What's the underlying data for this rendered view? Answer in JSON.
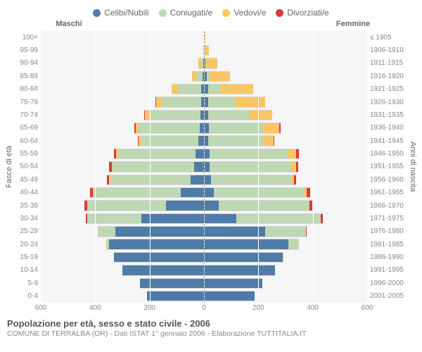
{
  "legend": {
    "items": [
      {
        "label": "Celibi/Nubili",
        "color": "#4f7ca7"
      },
      {
        "label": "Coniugati/e",
        "color": "#bed8b4"
      },
      {
        "label": "Vedovi/e",
        "color": "#fac663"
      },
      {
        "label": "Divorziati/e",
        "color": "#d93a3a"
      }
    ]
  },
  "headers": {
    "male": "Maschi",
    "female": "Femmine"
  },
  "yAxisLeft": {
    "label": "Fasce di età"
  },
  "yAxisRight": {
    "label": "Anni di nascita"
  },
  "xMax": 600,
  "xTicks": [
    600,
    400,
    200,
    0,
    200,
    400,
    600
  ],
  "colors": {
    "celibi": "#4f7ca7",
    "coniugati": "#bed8b4",
    "vedovi": "#fac663",
    "divorziati": "#d93a3a",
    "plotBg": "#f6f6f6",
    "grid": "#ffffff",
    "centerline": "#999999",
    "border": "#d6d7d6"
  },
  "rows": [
    {
      "age": "100+",
      "birth": "≤ 1905",
      "m": {
        "c": 0,
        "co": 0,
        "v": 0,
        "d": 0
      },
      "f": {
        "c": 0,
        "co": 0,
        "v": 5,
        "d": 0
      }
    },
    {
      "age": "95-99",
      "birth": "1906-1910",
      "m": {
        "c": 0,
        "co": 0,
        "v": 3,
        "d": 0
      },
      "f": {
        "c": 0,
        "co": 0,
        "v": 18,
        "d": 0
      }
    },
    {
      "age": "90-94",
      "birth": "1911-1915",
      "m": {
        "c": 3,
        "co": 7,
        "v": 10,
        "d": 0
      },
      "f": {
        "c": 5,
        "co": 3,
        "v": 40,
        "d": 0
      }
    },
    {
      "age": "85-89",
      "birth": "1916-1920",
      "m": {
        "c": 5,
        "co": 25,
        "v": 15,
        "d": 0
      },
      "f": {
        "c": 10,
        "co": 10,
        "v": 75,
        "d": 0
      }
    },
    {
      "age": "80-84",
      "birth": "1921-1925",
      "m": {
        "c": 10,
        "co": 85,
        "v": 25,
        "d": 0
      },
      "f": {
        "c": 15,
        "co": 45,
        "v": 120,
        "d": 0
      }
    },
    {
      "age": "75-79",
      "birth": "1926-1930",
      "m": {
        "c": 10,
        "co": 145,
        "v": 20,
        "d": 3
      },
      "f": {
        "c": 15,
        "co": 100,
        "v": 110,
        "d": 0
      }
    },
    {
      "age": "70-74",
      "birth": "1931-1935",
      "m": {
        "c": 12,
        "co": 190,
        "v": 15,
        "d": 3
      },
      "f": {
        "c": 15,
        "co": 150,
        "v": 85,
        "d": 0
      }
    },
    {
      "age": "65-69",
      "birth": "1936-1940",
      "m": {
        "c": 15,
        "co": 225,
        "v": 12,
        "d": 5
      },
      "f": {
        "c": 18,
        "co": 200,
        "v": 60,
        "d": 3
      }
    },
    {
      "age": "60-64",
      "birth": "1941-1945",
      "m": {
        "c": 20,
        "co": 210,
        "v": 10,
        "d": 3
      },
      "f": {
        "c": 15,
        "co": 205,
        "v": 35,
        "d": 3
      }
    },
    {
      "age": "55-59",
      "birth": "1946-1950",
      "m": {
        "c": 30,
        "co": 285,
        "v": 8,
        "d": 8
      },
      "f": {
        "c": 20,
        "co": 290,
        "v": 30,
        "d": 10
      }
    },
    {
      "age": "50-54",
      "birth": "1951-1955",
      "m": {
        "c": 35,
        "co": 300,
        "v": 5,
        "d": 10
      },
      "f": {
        "c": 20,
        "co": 300,
        "v": 18,
        "d": 8
      }
    },
    {
      "age": "45-49",
      "birth": "1956-1960",
      "m": {
        "c": 50,
        "co": 295,
        "v": 3,
        "d": 8
      },
      "f": {
        "c": 25,
        "co": 295,
        "v": 10,
        "d": 8
      }
    },
    {
      "age": "40-44",
      "birth": "1961-1965",
      "m": {
        "c": 85,
        "co": 320,
        "v": 3,
        "d": 12
      },
      "f": {
        "c": 35,
        "co": 335,
        "v": 8,
        "d": 12
      }
    },
    {
      "age": "35-39",
      "birth": "1966-1970",
      "m": {
        "c": 140,
        "co": 290,
        "v": 0,
        "d": 10
      },
      "f": {
        "c": 55,
        "co": 330,
        "v": 3,
        "d": 10
      }
    },
    {
      "age": "30-34",
      "birth": "1971-1975",
      "m": {
        "c": 230,
        "co": 200,
        "v": 0,
        "d": 5
      },
      "f": {
        "c": 120,
        "co": 310,
        "v": 0,
        "d": 8
      }
    },
    {
      "age": "25-29",
      "birth": "1976-1980",
      "m": {
        "c": 325,
        "co": 65,
        "v": 0,
        "d": 0
      },
      "f": {
        "c": 225,
        "co": 150,
        "v": 0,
        "d": 3
      }
    },
    {
      "age": "20-24",
      "birth": "1981-1985",
      "m": {
        "c": 350,
        "co": 10,
        "v": 0,
        "d": 0
      },
      "f": {
        "c": 310,
        "co": 40,
        "v": 0,
        "d": 0
      }
    },
    {
      "age": "15-19",
      "birth": "1986-1990",
      "m": {
        "c": 330,
        "co": 0,
        "v": 0,
        "d": 0
      },
      "f": {
        "c": 290,
        "co": 3,
        "v": 0,
        "d": 0
      }
    },
    {
      "age": "10-14",
      "birth": "1991-1995",
      "m": {
        "c": 300,
        "co": 0,
        "v": 0,
        "d": 0
      },
      "f": {
        "c": 260,
        "co": 0,
        "v": 0,
        "d": 0
      }
    },
    {
      "age": "5-9",
      "birth": "1996-2000",
      "m": {
        "c": 235,
        "co": 0,
        "v": 0,
        "d": 0
      },
      "f": {
        "c": 215,
        "co": 0,
        "v": 0,
        "d": 0
      }
    },
    {
      "age": "0-4",
      "birth": "2001-2005",
      "m": {
        "c": 210,
        "co": 0,
        "v": 0,
        "d": 0
      },
      "f": {
        "c": 185,
        "co": 0,
        "v": 0,
        "d": 0
      }
    }
  ],
  "footer": {
    "title": "Popolazione per età, sesso e stato civile - 2006",
    "sub": "COMUNE DI TERRALBA (OR) - Dati ISTAT 1° gennaio 2006 - Elaborazione TUTTITALIA.IT"
  }
}
